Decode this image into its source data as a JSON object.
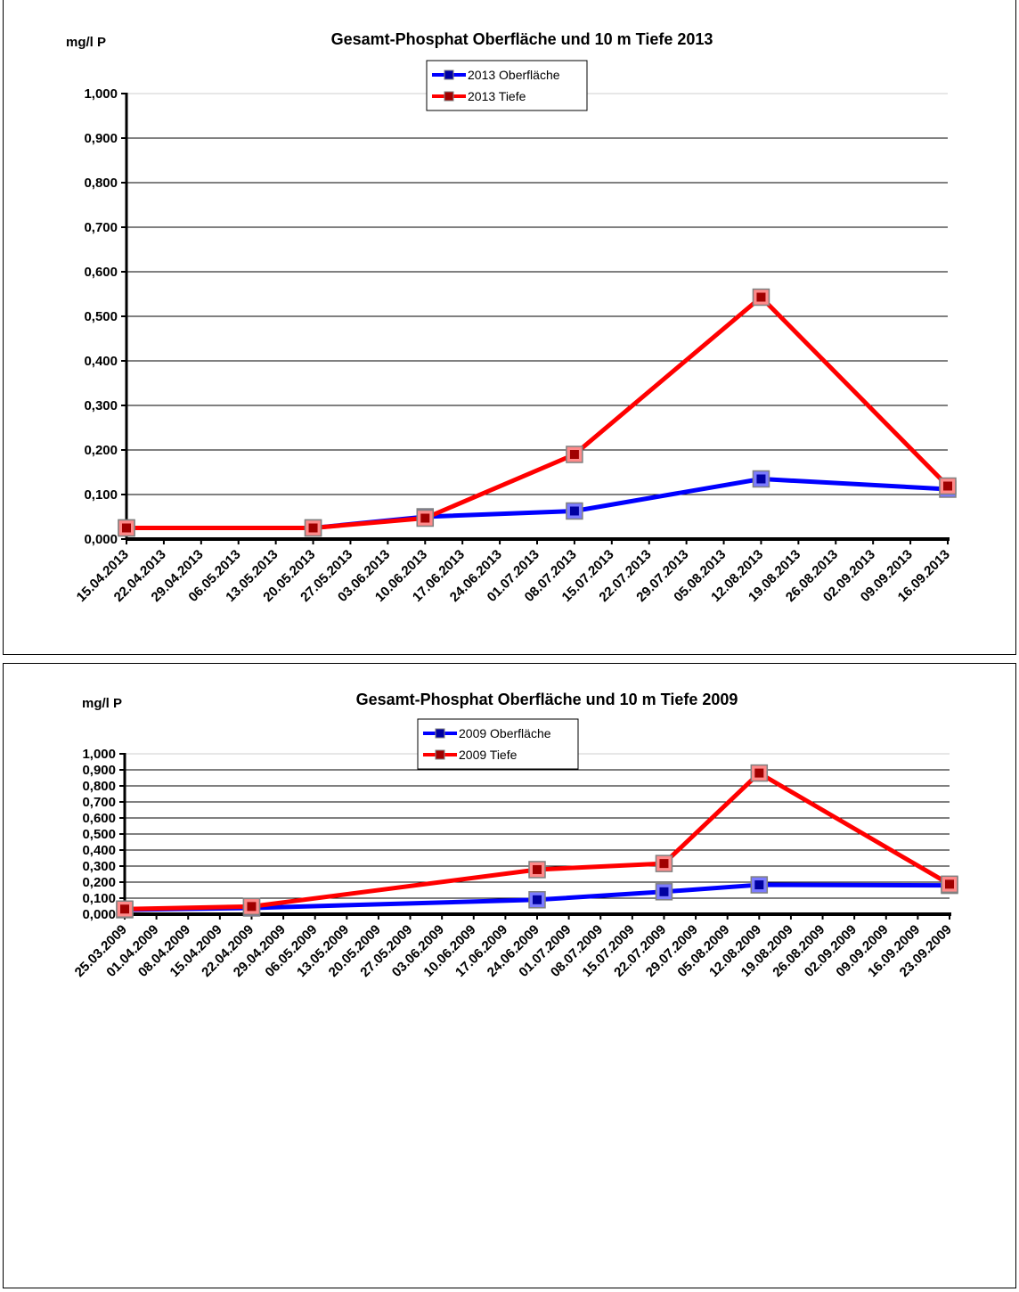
{
  "chart_data": [
    {
      "type": "line",
      "title": "Gesamt-Phosphat Oberfläche  und 10 m Tiefe 2013",
      "ylabel": "mg/l P",
      "ylim": [
        0,
        1
      ],
      "yticks": [
        "0,000",
        "0,100",
        "0,200",
        "0,300",
        "0,400",
        "0,500",
        "0,600",
        "0,700",
        "0,800",
        "0,900",
        "1,000"
      ],
      "categories": [
        "15.04.2013",
        "22.04.2013",
        "29.04.2013",
        "06.05.2013",
        "13.05.2013",
        "20.05.2013",
        "27.05.2013",
        "03.06.2013",
        "10.06.2013",
        "17.06.2013",
        "24.06.2013",
        "01.07.2013",
        "08.07.2013",
        "15.07.2013",
        "22.07.2013",
        "29.07.2013",
        "05.08.2013",
        "12.08.2013",
        "19.08.2013",
        "26.08.2013",
        "02.09.2013",
        "09.09.2013",
        "16.09.2013"
      ],
      "legend_position": "top-center",
      "grid": true,
      "series": [
        {
          "name": "2013 Oberfläche",
          "color": "#0000ff",
          "points": [
            {
              "x": "15.04.2013",
              "y": 0.025
            },
            {
              "x": "20.05.2013",
              "y": 0.025
            },
            {
              "x": "10.06.2013",
              "y": 0.05
            },
            {
              "x": "08.07.2013",
              "y": 0.063
            },
            {
              "x": "12.08.2013",
              "y": 0.135
            },
            {
              "x": "16.09.2013",
              "y": 0.112
            }
          ]
        },
        {
          "name": "2013 Tiefe",
          "color": "#ff0000",
          "points": [
            {
              "x": "15.04.2013",
              "y": 0.025
            },
            {
              "x": "20.05.2013",
              "y": 0.025
            },
            {
              "x": "10.06.2013",
              "y": 0.047
            },
            {
              "x": "08.07.2013",
              "y": 0.19
            },
            {
              "x": "12.08.2013",
              "y": 0.543
            },
            {
              "x": "16.09.2013",
              "y": 0.119
            }
          ]
        }
      ]
    },
    {
      "type": "line",
      "title": "Gesamt-Phosphat Oberfläche  und 10 m Tiefe 2009",
      "ylabel": "mg/l P",
      "ylim": [
        0,
        1
      ],
      "yticks": [
        "0,000",
        "0,100",
        "0,200",
        "0,300",
        "0,400",
        "0,500",
        "0,600",
        "0,700",
        "0,800",
        "0,900",
        "1,000"
      ],
      "categories": [
        "25.03.2009",
        "01.04.2009",
        "08.04.2009",
        "15.04.2009",
        "22.04.2009",
        "29.04.2009",
        "06.05.2009",
        "13.05.2009",
        "20.05.2009",
        "27.05.2009",
        "03.06.2009",
        "10.06.2009",
        "17.06.2009",
        "24.06.2009",
        "01.07.2009",
        "08.07.2009",
        "15.07.2009",
        "22.07.2009",
        "29.07.2009",
        "05.08.2009",
        "12.08.2009",
        "19.08.2009",
        "26.08.2009",
        "02.09.2009",
        "09.09.2009",
        "16.09.2009",
        "23.09.2009"
      ],
      "legend_position": "top-center",
      "grid": true,
      "series": [
        {
          "name": "2009 Oberfläche",
          "color": "#0000ff",
          "points": [
            {
              "x": "25.03.2009",
              "y": 0.028
            },
            {
              "x": "22.04.2009",
              "y": 0.039
            },
            {
              "x": "24.06.2009",
              "y": 0.09
            },
            {
              "x": "22.07.2009",
              "y": 0.14
            },
            {
              "x": "12.08.2009",
              "y": 0.183
            },
            {
              "x": "23.09.2009",
              "y": 0.18
            }
          ]
        },
        {
          "name": "2009 Tiefe",
          "color": "#ff0000",
          "points": [
            {
              "x": "25.03.2009",
              "y": 0.032
            },
            {
              "x": "22.04.2009",
              "y": 0.048
            },
            {
              "x": "24.06.2009",
              "y": 0.278
            },
            {
              "x": "22.07.2009",
              "y": 0.316
            },
            {
              "x": "12.08.2009",
              "y": 0.88
            },
            {
              "x": "23.09.2009",
              "y": 0.187
            }
          ]
        }
      ]
    }
  ]
}
